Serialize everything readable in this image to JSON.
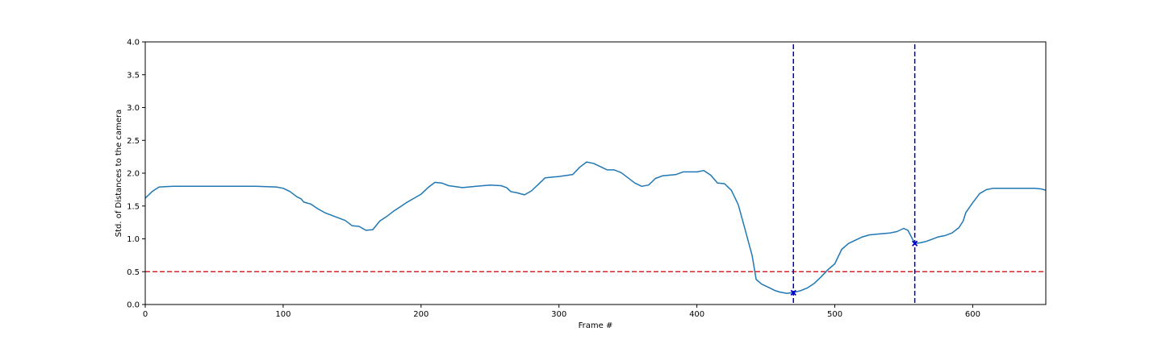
{
  "chart_data": {
    "type": "line",
    "title": "",
    "xlabel": "Frame #",
    "ylabel": "Std. of Distances to the camera",
    "xlim": [
      0,
      653
    ],
    "ylim": [
      0,
      4.0
    ],
    "xticks": [
      "0",
      "100",
      "200",
      "300",
      "400",
      "500",
      "600"
    ],
    "yticks": [
      "0.0",
      "0.5",
      "1.0",
      "1.5",
      "2.0",
      "2.5",
      "3.0",
      "3.5",
      "4.0"
    ],
    "grid": false,
    "legend": "none",
    "series": [
      {
        "color": "#1f77b4",
        "points": [
          [
            0,
            1.62
          ],
          [
            5,
            1.72
          ],
          [
            10,
            1.79
          ],
          [
            20,
            1.8
          ],
          [
            40,
            1.8
          ],
          [
            60,
            1.8
          ],
          [
            80,
            1.8
          ],
          [
            95,
            1.79
          ],
          [
            100,
            1.77
          ],
          [
            105,
            1.72
          ],
          [
            110,
            1.64
          ],
          [
            113,
            1.61
          ],
          [
            115,
            1.56
          ],
          [
            120,
            1.53
          ],
          [
            125,
            1.46
          ],
          [
            130,
            1.4
          ],
          [
            135,
            1.36
          ],
          [
            140,
            1.32
          ],
          [
            145,
            1.28
          ],
          [
            150,
            1.2
          ],
          [
            155,
            1.19
          ],
          [
            160,
            1.13
          ],
          [
            165,
            1.14
          ],
          [
            170,
            1.27
          ],
          [
            175,
            1.34
          ],
          [
            180,
            1.42
          ],
          [
            185,
            1.49
          ],
          [
            190,
            1.56
          ],
          [
            195,
            1.62
          ],
          [
            200,
            1.68
          ],
          [
            205,
            1.78
          ],
          [
            210,
            1.86
          ],
          [
            215,
            1.85
          ],
          [
            220,
            1.81
          ],
          [
            230,
            1.78
          ],
          [
            240,
            1.8
          ],
          [
            250,
            1.82
          ],
          [
            258,
            1.81
          ],
          [
            262,
            1.78
          ],
          [
            265,
            1.72
          ],
          [
            270,
            1.7
          ],
          [
            275,
            1.67
          ],
          [
            280,
            1.73
          ],
          [
            285,
            1.83
          ],
          [
            290,
            1.93
          ],
          [
            295,
            1.94
          ],
          [
            300,
            1.95
          ],
          [
            310,
            1.98
          ],
          [
            315,
            2.09
          ],
          [
            320,
            2.17
          ],
          [
            325,
            2.15
          ],
          [
            330,
            2.1
          ],
          [
            335,
            2.05
          ],
          [
            340,
            2.05
          ],
          [
            345,
            2.01
          ],
          [
            350,
            1.93
          ],
          [
            355,
            1.85
          ],
          [
            360,
            1.8
          ],
          [
            365,
            1.82
          ],
          [
            370,
            1.92
          ],
          [
            375,
            1.96
          ],
          [
            385,
            1.98
          ],
          [
            390,
            2.02
          ],
          [
            400,
            2.02
          ],
          [
            405,
            2.04
          ],
          [
            410,
            1.97
          ],
          [
            415,
            1.85
          ],
          [
            420,
            1.84
          ],
          [
            425,
            1.74
          ],
          [
            430,
            1.52
          ],
          [
            435,
            1.14
          ],
          [
            440,
            0.75
          ],
          [
            443,
            0.38
          ],
          [
            447,
            0.31
          ],
          [
            452,
            0.26
          ],
          [
            457,
            0.21
          ],
          [
            460,
            0.19
          ],
          [
            465,
            0.17
          ],
          [
            470,
            0.18
          ],
          [
            475,
            0.21
          ],
          [
            480,
            0.25
          ],
          [
            485,
            0.32
          ],
          [
            490,
            0.42
          ],
          [
            495,
            0.53
          ],
          [
            500,
            0.62
          ],
          [
            505,
            0.84
          ],
          [
            510,
            0.93
          ],
          [
            515,
            0.98
          ],
          [
            520,
            1.03
          ],
          [
            525,
            1.06
          ],
          [
            530,
            1.07
          ],
          [
            535,
            1.08
          ],
          [
            540,
            1.09
          ],
          [
            545,
            1.11
          ],
          [
            550,
            1.16
          ],
          [
            553,
            1.13
          ],
          [
            558,
            0.93
          ],
          [
            562,
            0.94
          ],
          [
            566,
            0.96
          ],
          [
            570,
            0.99
          ],
          [
            575,
            1.03
          ],
          [
            580,
            1.05
          ],
          [
            585,
            1.09
          ],
          [
            590,
            1.17
          ],
          [
            593,
            1.27
          ],
          [
            595,
            1.4
          ],
          [
            600,
            1.55
          ],
          [
            605,
            1.69
          ],
          [
            610,
            1.75
          ],
          [
            615,
            1.77
          ],
          [
            620,
            1.77
          ],
          [
            630,
            1.77
          ],
          [
            640,
            1.77
          ],
          [
            645,
            1.77
          ],
          [
            650,
            1.76
          ],
          [
            653,
            1.74
          ]
        ]
      }
    ],
    "hline": {
      "y": 0.5,
      "color": "#d62728",
      "style": "dashed"
    },
    "vlines": [
      {
        "x": 470,
        "color": "#0000cd",
        "style": "dashed"
      },
      {
        "x": 558,
        "color": "#0000cd",
        "style": "dashed"
      }
    ],
    "markers": [
      {
        "x": 470,
        "y": 0.18,
        "shape": "x",
        "color": "#0000cd"
      },
      {
        "x": 558,
        "y": 0.93,
        "shape": "x",
        "color": "#0000cd"
      }
    ]
  }
}
